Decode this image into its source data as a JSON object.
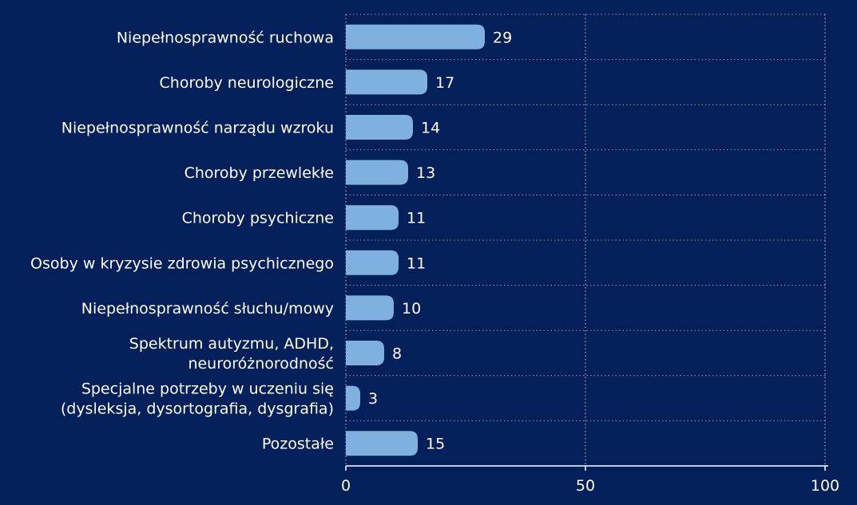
{
  "colors": {
    "background": "#03205a",
    "bar": "#7fb1df",
    "text": "#ffffff",
    "grid": "#ffffff"
  },
  "chart_data": {
    "type": "bar",
    "orientation": "horizontal",
    "categories": [
      [
        "Niepełnosprawność ruchowa"
      ],
      [
        "Choroby neurologiczne"
      ],
      [
        "Niepełnosprawność narządu wzroku"
      ],
      [
        "Choroby przewlekłe"
      ],
      [
        "Choroby psychiczne"
      ],
      [
        "Osoby w kryzysie zdrowia psychicznego"
      ],
      [
        "Niepełnosprawność słuchu/mowy"
      ],
      [
        "Spektrum autyzmu, ADHD,",
        "neuroróżnorodność"
      ],
      [
        "Specjalne potrzeby w uczeniu się",
        "(dysleksja, dysortografia, dysgrafia)"
      ],
      [
        "Pozostałe"
      ]
    ],
    "values": [
      29,
      17,
      14,
      13,
      11,
      11,
      10,
      8,
      3,
      15
    ],
    "xlim": [
      0,
      100
    ],
    "xticks": [
      0,
      50,
      100
    ],
    "xtick_labels": [
      "0",
      "50",
      "100"
    ],
    "grid": true,
    "legend": "none",
    "title": "",
    "xlabel": "",
    "ylabel": ""
  }
}
